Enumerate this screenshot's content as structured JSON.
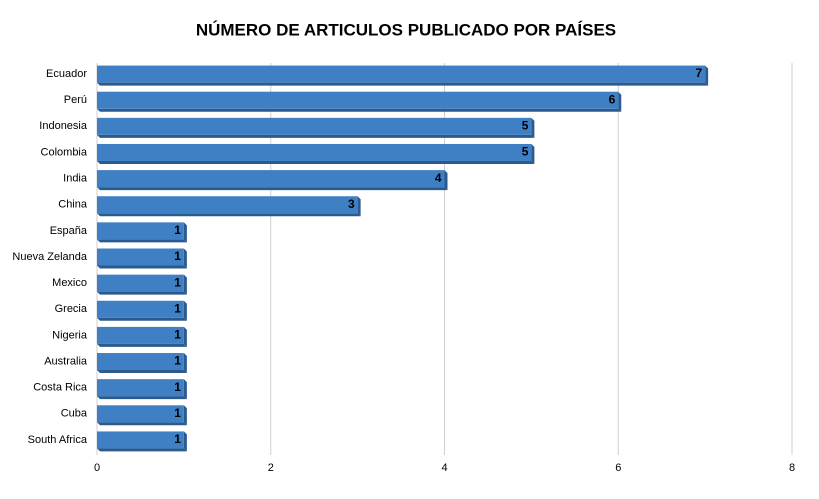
{
  "chart_data": {
    "type": "bar",
    "orientation": "horizontal",
    "title": "NÚMERO DE ARTICULOS PUBLICADO POR PAÍSES",
    "categories": [
      "Ecuador",
      "Perú",
      "Indonesia",
      "Colombia",
      "India",
      "China",
      "España",
      "Nueva Zelanda",
      "Mexico",
      "Grecia",
      "Nigeria",
      "Australia",
      "Costa Rica",
      "Cuba",
      "South Africa"
    ],
    "values": [
      7,
      6,
      5,
      5,
      4,
      3,
      1,
      1,
      1,
      1,
      1,
      1,
      1,
      1,
      1
    ],
    "color": "#3f7fc4",
    "xlim": [
      0,
      8
    ],
    "xticks": [
      0,
      2,
      4,
      6,
      8
    ],
    "grid": true
  }
}
